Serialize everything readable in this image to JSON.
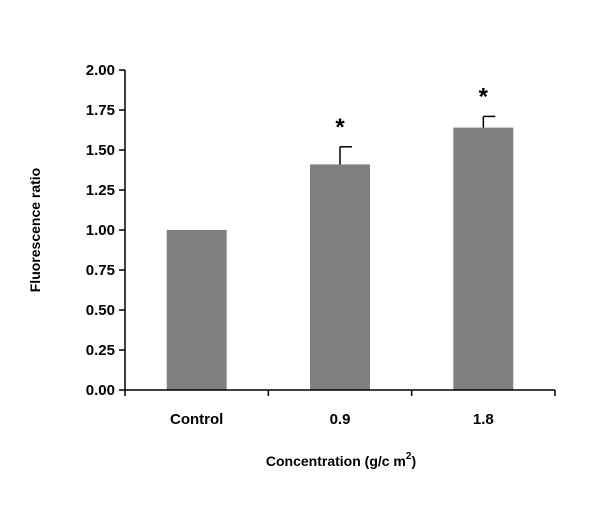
{
  "chart_data": {
    "type": "bar",
    "categories": [
      "Control",
      "0.9",
      "1.8"
    ],
    "values": [
      1.0,
      1.41,
      1.64
    ],
    "errors": [
      0.0,
      0.11,
      0.07
    ],
    "significance": [
      "",
      "*",
      "*"
    ],
    "xlabel_main": "Concentration (g/c  m",
    "xlabel_sup": "2",
    "xlabel_close": ")",
    "ylabel": "Fluorescence ratio",
    "ylim": [
      0,
      2
    ],
    "yticks": [
      "0.00",
      "0.25",
      "0.50",
      "0.75",
      "1.00",
      "1.25",
      "1.50",
      "1.75",
      "2.00"
    ],
    "ytick_values": [
      0,
      0.25,
      0.5,
      0.75,
      1.0,
      1.25,
      1.5,
      1.75,
      2.0
    ],
    "bar_color": "#808080",
    "grid": false
  }
}
